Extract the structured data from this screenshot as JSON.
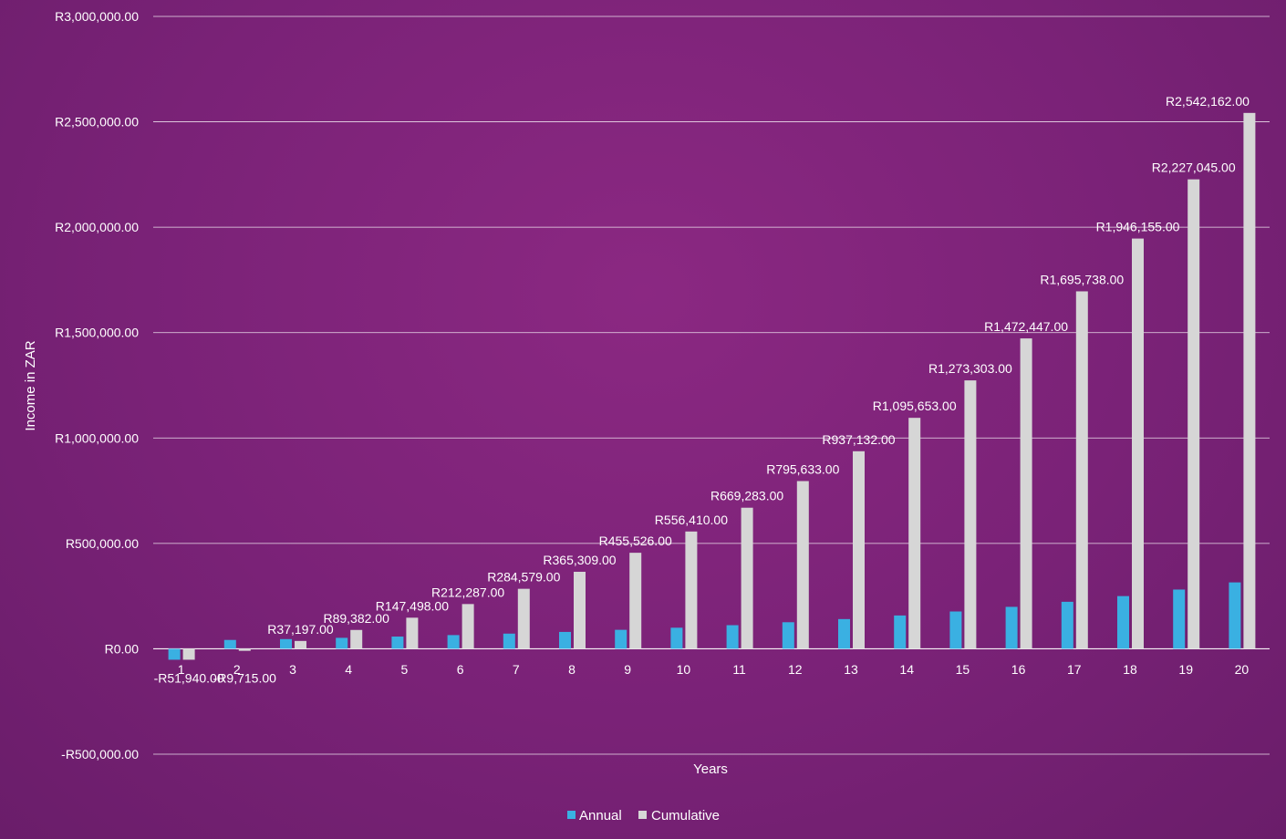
{
  "chart_data": {
    "type": "bar",
    "title": "",
    "xlabel": "Years",
    "ylabel": "Income in ZAR",
    "ylim": [
      -500000,
      3000000
    ],
    "ytick_values": [
      -500000,
      0,
      500000,
      1000000,
      1500000,
      2000000,
      2500000,
      3000000
    ],
    "ytick_labels": [
      "-R500,000.00",
      "R0.00",
      "R500,000.00",
      "R1,000,000.00",
      "R1,500,000.00",
      "R2,000,000.00",
      "R2,500,000.00",
      "R3,000,000.00"
    ],
    "categories": [
      "1",
      "2",
      "3",
      "4",
      "5",
      "6",
      "7",
      "8",
      "9",
      "10",
      "11",
      "12",
      "13",
      "14",
      "15",
      "16",
      "17",
      "18",
      "19",
      "20"
    ],
    "grid": true,
    "legend_position": "bottom",
    "series": [
      {
        "name": "Annual",
        "color": "#3ab0e2",
        "values": [
          -51940,
          42000,
          46000,
          52000,
          58000,
          65000,
          72000,
          80000,
          90000,
          100000,
          112000,
          126000,
          141000,
          158000,
          177000,
          199000,
          223000,
          250000,
          281000,
          315000
        ]
      },
      {
        "name": "Cumulative",
        "color": "#d6d6d6",
        "values": [
          -51940,
          -9715,
          37197,
          89382,
          147498,
          212287,
          284579,
          365309,
          455526,
          556410,
          669283,
          795633,
          937132,
          1095653,
          1273303,
          1472447,
          1695738,
          1946155,
          2227045,
          2542162
        ],
        "data_labels": [
          "-R51,940.00",
          "-R9,715.00",
          "R37,197.00",
          "R89,382.00",
          "R147,498.00",
          "R212,287.00",
          "R284,579.00",
          "R365,309.00",
          "R455,526.00",
          "R556,410.00",
          "R669,283.00",
          "R795,633.00",
          "R937,132.00",
          "R1,095,653.00",
          "R1,273,303.00",
          "R1,472,447.00",
          "R1,695,738.00",
          "R1,946,155.00",
          "R2,227,045.00",
          "R2,542,162.00"
        ]
      }
    ]
  }
}
